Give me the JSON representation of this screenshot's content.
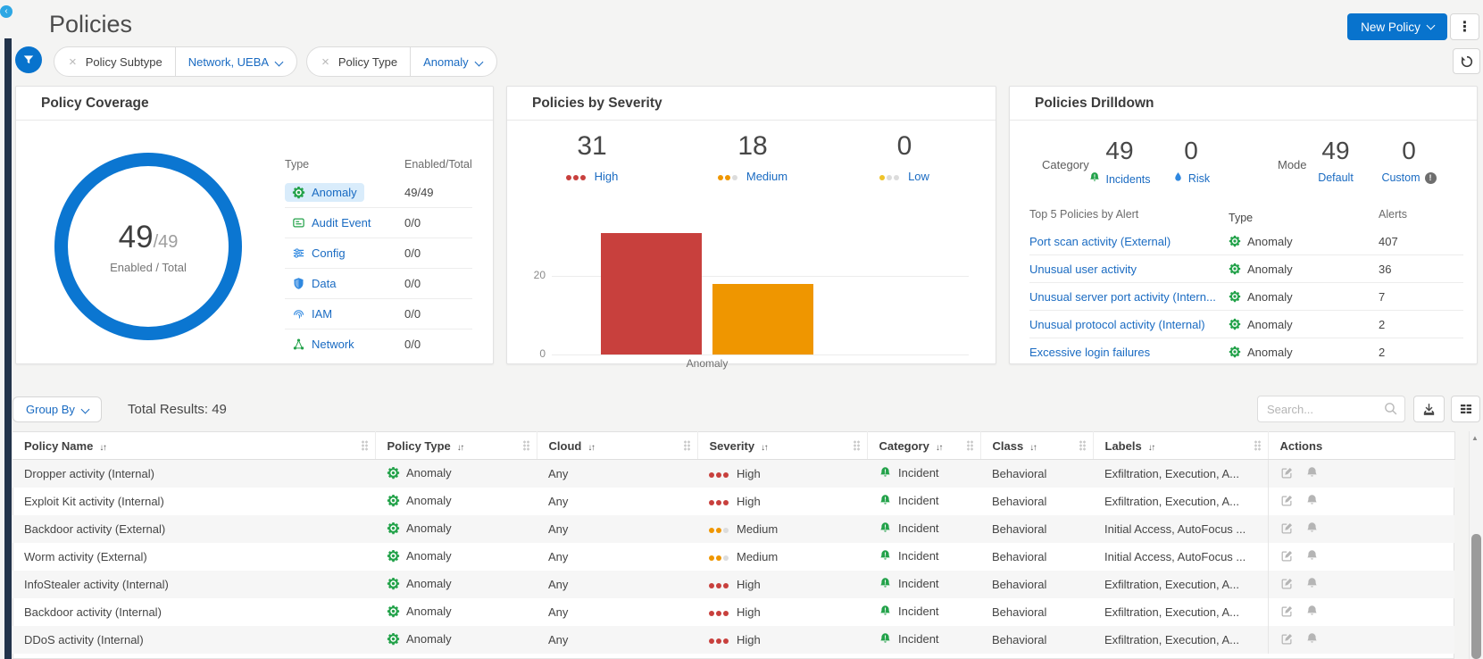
{
  "app": {
    "title": "Policies",
    "new_policy": "New Policy"
  },
  "filters": {
    "chips": [
      {
        "label": "Policy Subtype",
        "value": "Network, UEBA"
      },
      {
        "label": "Policy Type",
        "value": "Anomaly"
      }
    ]
  },
  "coverage": {
    "title": "Policy Coverage",
    "donut": {
      "enabled": "49",
      "total": "/49",
      "caption": "Enabled / Total"
    },
    "table": {
      "col1": "Type",
      "col2": "Enabled/Total",
      "rows": [
        {
          "type": "Anomaly",
          "icon": "gear",
          "value": "49/49",
          "selected": true
        },
        {
          "type": "Audit Event",
          "icon": "audit",
          "value": "0/0",
          "selected": false
        },
        {
          "type": "Config",
          "icon": "config",
          "value": "0/0",
          "selected": false
        },
        {
          "type": "Data",
          "icon": "shield",
          "value": "0/0",
          "selected": false
        },
        {
          "type": "IAM",
          "icon": "fingerprint",
          "value": "0/0",
          "selected": false
        },
        {
          "type": "Network",
          "icon": "network",
          "value": "0/0",
          "selected": false
        }
      ]
    }
  },
  "severity": {
    "title": "Policies by Severity",
    "stats": [
      {
        "value": "31",
        "label": "High",
        "dots_on": 3,
        "dot_color": "#c8403d"
      },
      {
        "value": "18",
        "label": "Medium",
        "dots_on": 2,
        "dot_color": "#ef9600"
      },
      {
        "value": "0",
        "label": "Low",
        "dots_on": 1,
        "dot_color": "#efc32a"
      }
    ]
  },
  "chart_data": [
    {
      "type": "pie",
      "subtype": "donut",
      "title": "Policy Coverage",
      "label": "Enabled / Total",
      "enabled": 49,
      "total": 49,
      "ring_color": "#0b76d1"
    },
    {
      "type": "bar",
      "title": "Policies by Severity",
      "categories": [
        "Anomaly"
      ],
      "series": [
        {
          "name": "High",
          "values": [
            31
          ],
          "color": "#c8403d"
        },
        {
          "name": "Medium",
          "values": [
            18
          ],
          "color": "#ef9600"
        },
        {
          "name": "Low",
          "values": [
            0
          ],
          "color": "#efc32a"
        }
      ],
      "xlabel": "Anomaly",
      "ylabel": "",
      "ylim": [
        0,
        35
      ],
      "yticks": [
        0,
        20
      ],
      "grid": true,
      "legend": false
    }
  ],
  "drilldown": {
    "title": "Policies Drilldown",
    "category": {
      "label": "Category",
      "items": [
        {
          "value": "49",
          "label": "Incidents",
          "icon": "bell"
        },
        {
          "value": "0",
          "label": "Risk",
          "icon": "droplet"
        }
      ]
    },
    "mode": {
      "label": "Mode",
      "items": [
        {
          "value": "49",
          "label": "Default"
        },
        {
          "value": "0",
          "label": "Custom",
          "info": true
        }
      ]
    },
    "top5": {
      "headers": [
        "Top 5 Policies by Alert",
        "Type",
        "Alerts"
      ],
      "rows": [
        {
          "name": "Port scan activity (External)",
          "type": "Anomaly",
          "alerts": "407"
        },
        {
          "name": "Unusual user activity",
          "type": "Anomaly",
          "alerts": "36"
        },
        {
          "name": "Unusual server port activity (Intern...",
          "type": "Anomaly",
          "alerts": "7"
        },
        {
          "name": "Unusual protocol activity (Internal)",
          "type": "Anomaly",
          "alerts": "2"
        },
        {
          "name": "Excessive login failures",
          "type": "Anomaly",
          "alerts": "2"
        }
      ]
    }
  },
  "toolbar": {
    "group_by": "Group By",
    "total_results": "Total Results: 49",
    "search_placeholder": "Search..."
  },
  "table": {
    "columns": [
      "Policy Name",
      "Policy Type",
      "Cloud",
      "Severity",
      "Category",
      "Class",
      "Labels",
      "Actions"
    ],
    "rows": [
      {
        "name": "Dropper activity (Internal)",
        "type": "Anomaly",
        "cloud": "Any",
        "severity": "High",
        "category": "Incident",
        "class": "Behavioral",
        "labels": "Exfiltration, Execution, A..."
      },
      {
        "name": "Exploit Kit activity (Internal)",
        "type": "Anomaly",
        "cloud": "Any",
        "severity": "High",
        "category": "Incident",
        "class": "Behavioral",
        "labels": "Exfiltration, Execution, A..."
      },
      {
        "name": "Backdoor activity (External)",
        "type": "Anomaly",
        "cloud": "Any",
        "severity": "Medium",
        "category": "Incident",
        "class": "Behavioral",
        "labels": "Initial Access, AutoFocus ..."
      },
      {
        "name": "Worm activity (External)",
        "type": "Anomaly",
        "cloud": "Any",
        "severity": "Medium",
        "category": "Incident",
        "class": "Behavioral",
        "labels": "Initial Access, AutoFocus ..."
      },
      {
        "name": "InfoStealer activity (Internal)",
        "type": "Anomaly",
        "cloud": "Any",
        "severity": "High",
        "category": "Incident",
        "class": "Behavioral",
        "labels": "Exfiltration, Execution, A..."
      },
      {
        "name": "Backdoor activity (Internal)",
        "type": "Anomaly",
        "cloud": "Any",
        "severity": "High",
        "category": "Incident",
        "class": "Behavioral",
        "labels": "Exfiltration, Execution, A..."
      },
      {
        "name": "DDoS activity (Internal)",
        "type": "Anomaly",
        "cloud": "Any",
        "severity": "High",
        "category": "Incident",
        "class": "Behavioral",
        "labels": "Exfiltration, Execution, A..."
      }
    ]
  },
  "severity_styles": {
    "High": [
      "#c8403d",
      "#c8403d",
      "#c8403d"
    ],
    "Medium": [
      "#ef9600",
      "#ef9600",
      "#dcdcdc"
    ],
    "Low": [
      "#efc32a",
      "#dcdcdc",
      "#dcdcdc"
    ]
  },
  "colors": {
    "accent_blue": "#0873cd",
    "link_blue": "#1a6bc2",
    "green": "#23a24a",
    "red": "#c8403d",
    "orange": "#ef9600",
    "yellow": "#efc32a",
    "dot_off": "#dcdcdc",
    "risk_blue": "#2f88e0",
    "donut_ring": "#0b76d1"
  }
}
